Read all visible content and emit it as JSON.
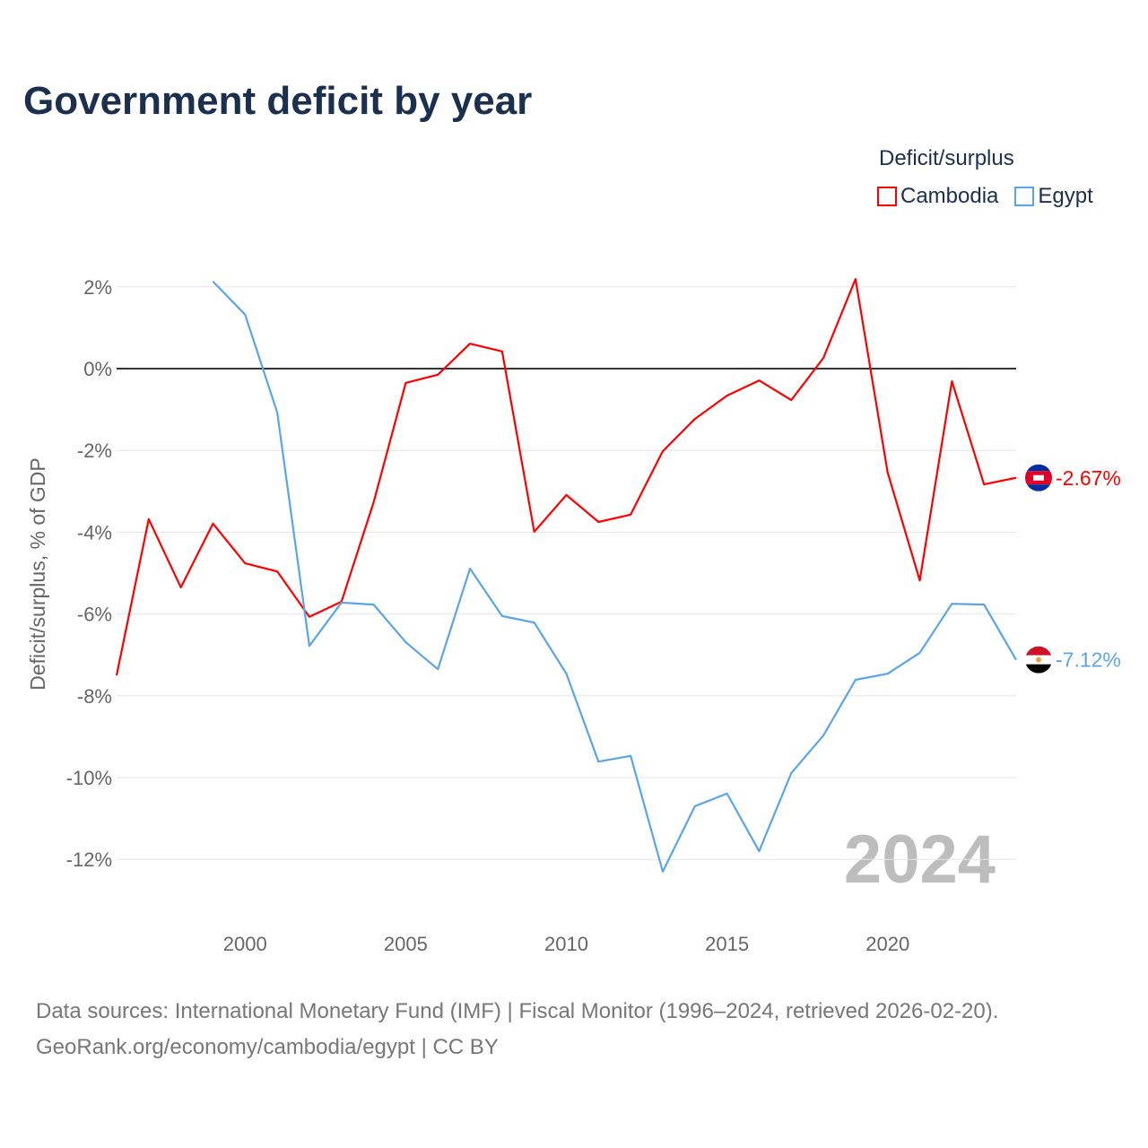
{
  "title": "Government deficit by year",
  "legend": {
    "title": "Deficit/surplus",
    "items": [
      {
        "name": "Cambodia",
        "color": "#ff0000"
      },
      {
        "name": "Egypt",
        "color": "#5aa5ea"
      }
    ]
  },
  "watermark_year": "2024",
  "source_line1": "Data sources: International Monetary Fund (IMF) | Fiscal Monitor (1996–2024, retrieved 2026-02-20).",
  "source_line2": "GeoRank.org/economy/cambodia/egypt | CC BY",
  "chart_data": {
    "type": "line",
    "title": "Government deficit by year",
    "xlabel": "",
    "ylabel": "Deficit/surplus, % of GDP",
    "xlim": [
      1996,
      2024
    ],
    "ylim": [
      -13.1,
      2.4
    ],
    "x_ticks": [
      2000,
      2005,
      2010,
      2015,
      2020
    ],
    "y_ticks": [
      2,
      0,
      -2,
      -4,
      -6,
      -8,
      -10,
      -12
    ],
    "y_tick_labels": [
      "2%",
      "0%",
      "-2%",
      "-4%",
      "-6%",
      "-8%",
      "-10%",
      "-12%"
    ],
    "grid": true,
    "legend_position": "top-right",
    "series": [
      {
        "name": "Cambodia",
        "color": "#ff0000",
        "end_label": "-2.67%",
        "x": [
          1996,
          1997,
          1998,
          1999,
          2000,
          2001,
          2002,
          2003,
          2004,
          2005,
          2006,
          2007,
          2008,
          2009,
          2010,
          2011,
          2012,
          2013,
          2014,
          2015,
          2016,
          2017,
          2018,
          2019,
          2020,
          2021,
          2022,
          2023,
          2024
        ],
        "values": [
          -7.5,
          -3.68,
          -5.35,
          -3.79,
          -4.76,
          -4.96,
          -6.07,
          -5.7,
          -3.27,
          -0.35,
          -0.15,
          0.61,
          0.42,
          -3.99,
          -3.09,
          -3.75,
          -3.57,
          -2.02,
          -1.23,
          -0.66,
          -0.29,
          -0.77,
          0.26,
          2.19,
          -2.54,
          -5.18,
          -0.31,
          -2.83,
          -2.67
        ]
      },
      {
        "name": "Egypt",
        "color": "#5aa5ea",
        "end_label": "-7.12%",
        "x": [
          1999,
          2000,
          2001,
          2002,
          2003,
          2004,
          2005,
          2006,
          2007,
          2008,
          2009,
          2010,
          2011,
          2012,
          2013,
          2014,
          2015,
          2016,
          2017,
          2018,
          2019,
          2020,
          2021,
          2022,
          2023,
          2024
        ],
        "values": [
          2.13,
          1.32,
          -1.07,
          -6.78,
          -5.72,
          -5.77,
          -6.69,
          -7.35,
          -4.89,
          -6.05,
          -6.21,
          -7.46,
          -9.61,
          -9.47,
          -12.3,
          -10.7,
          -10.39,
          -11.8,
          -9.89,
          -8.97,
          -7.61,
          -7.46,
          -6.95,
          -5.75,
          -5.77,
          -7.12
        ]
      }
    ]
  }
}
